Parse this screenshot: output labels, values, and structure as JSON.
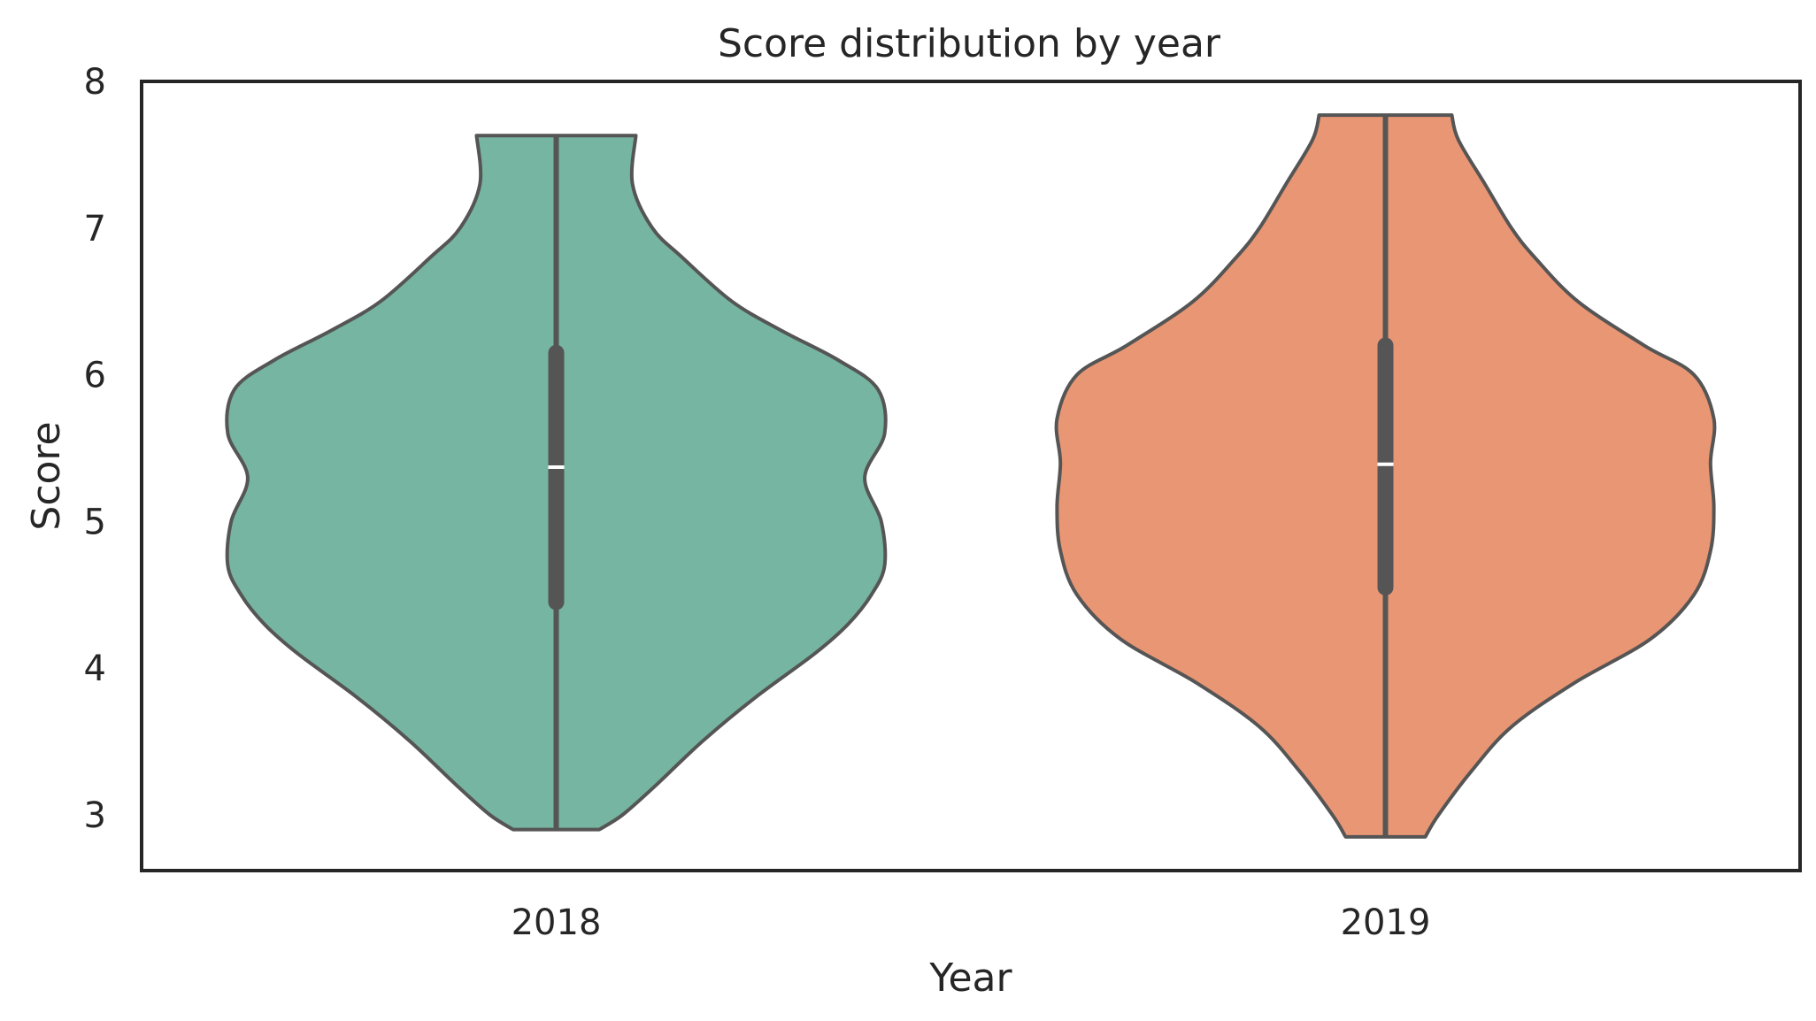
{
  "chart_data": {
    "type": "violin",
    "title": "Score distribution by year",
    "xlabel": "Year",
    "ylabel": "Score",
    "ylim": [
      2.62,
      8.0
    ],
    "yticks": [
      3,
      4,
      5,
      6,
      7,
      8
    ],
    "grid": false,
    "legend": "none",
    "categories": [
      "2018",
      "2019"
    ],
    "series": [
      {
        "category": "2018",
        "color": "#76b5a1",
        "min": 2.9,
        "max": 7.63,
        "q1": 4.45,
        "median": 5.37,
        "q3": 6.15,
        "density_profile": [
          [
            2.9,
            0.13
          ],
          [
            3.0,
            0.2
          ],
          [
            3.2,
            0.3
          ],
          [
            3.5,
            0.44
          ],
          [
            3.8,
            0.6
          ],
          [
            4.1,
            0.78
          ],
          [
            4.3,
            0.88
          ],
          [
            4.5,
            0.95
          ],
          [
            4.7,
            0.99
          ],
          [
            5.0,
            0.98
          ],
          [
            5.3,
            0.93
          ],
          [
            5.6,
            0.99
          ],
          [
            5.9,
            0.97
          ],
          [
            6.1,
            0.85
          ],
          [
            6.3,
            0.68
          ],
          [
            6.5,
            0.53
          ],
          [
            6.8,
            0.38
          ],
          [
            7.0,
            0.29
          ],
          [
            7.3,
            0.23
          ],
          [
            7.63,
            0.24
          ]
        ]
      },
      {
        "category": "2019",
        "color": "#e99674",
        "min": 2.85,
        "max": 7.77,
        "q1": 4.55,
        "median": 5.39,
        "q3": 6.2,
        "density_profile": [
          [
            2.85,
            0.12
          ],
          [
            3.0,
            0.16
          ],
          [
            3.3,
            0.26
          ],
          [
            3.6,
            0.38
          ],
          [
            3.9,
            0.57
          ],
          [
            4.2,
            0.8
          ],
          [
            4.5,
            0.93
          ],
          [
            4.8,
            0.98
          ],
          [
            5.1,
            0.99
          ],
          [
            5.4,
            0.98
          ],
          [
            5.7,
            0.99
          ],
          [
            6.0,
            0.93
          ],
          [
            6.2,
            0.78
          ],
          [
            6.5,
            0.58
          ],
          [
            6.8,
            0.45
          ],
          [
            7.0,
            0.38
          ],
          [
            7.3,
            0.3
          ],
          [
            7.6,
            0.22
          ],
          [
            7.77,
            0.2
          ]
        ]
      }
    ]
  },
  "colors": {
    "outline": "#555555",
    "axis": "#262626",
    "median": "#ffffff"
  }
}
